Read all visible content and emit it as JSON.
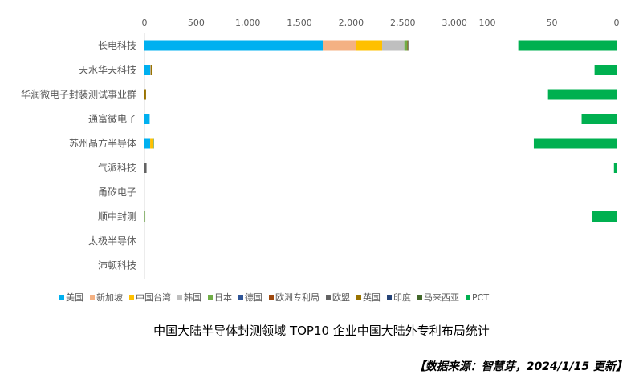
{
  "chart_data": [
    {
      "type": "bar",
      "orientation": "horizontal",
      "stacked": true,
      "categories": [
        "长电科技",
        "天水华天科技",
        "华润微电子封装测试事业群",
        "通富微电子",
        "苏州晶方半导体",
        "气派科技",
        "甬矽电子",
        "顺中封测",
        "太极半导体",
        "沛顿科技"
      ],
      "xlim": [
        0,
        3000
      ],
      "xticks": [
        "0",
        "500",
        "1,000",
        "1,500",
        "2,000",
        "2,500",
        "3,000"
      ],
      "xtick_values": [
        0,
        500,
        1000,
        1500,
        2000,
        2500,
        3000
      ],
      "series": [
        {
          "name": "美国",
          "color": "#00B0F0",
          "values": [
            1725,
            55,
            0,
            50,
            55,
            0,
            0,
            0,
            0,
            0
          ]
        },
        {
          "name": "新加坡",
          "color": "#F4B183",
          "values": [
            320,
            0,
            0,
            0,
            0,
            0,
            0,
            0,
            0,
            0
          ]
        },
        {
          "name": "中国台湾",
          "color": "#FFC000",
          "values": [
            255,
            0,
            0,
            0,
            25,
            0,
            0,
            0,
            0,
            0
          ]
        },
        {
          "name": "韩国",
          "color": "#BFBFBF",
          "values": [
            215,
            5,
            0,
            0,
            8,
            0,
            0,
            3,
            0,
            0
          ]
        },
        {
          "name": "日本",
          "color": "#70AD47",
          "values": [
            30,
            0,
            0,
            0,
            5,
            0,
            0,
            5,
            0,
            0
          ]
        },
        {
          "name": "德国",
          "color": "#2F5597",
          "values": [
            0,
            0,
            0,
            0,
            0,
            0,
            0,
            0,
            0,
            0
          ]
        },
        {
          "name": "欧洲专利局",
          "color": "#9E480E",
          "values": [
            5,
            0,
            0,
            0,
            0,
            0,
            0,
            0,
            0,
            0
          ]
        },
        {
          "name": "欧盟",
          "color": "#636363",
          "values": [
            5,
            0,
            0,
            0,
            0,
            20,
            0,
            0,
            0,
            0
          ]
        },
        {
          "name": "英国",
          "color": "#997300",
          "values": [
            0,
            10,
            15,
            0,
            0,
            0,
            0,
            0,
            0,
            0
          ]
        },
        {
          "name": "印度",
          "color": "#264478",
          "values": [
            0,
            0,
            0,
            0,
            0,
            0,
            0,
            0,
            0,
            0
          ]
        },
        {
          "name": "马来西亚",
          "color": "#43682B",
          "values": [
            5,
            0,
            0,
            0,
            0,
            0,
            0,
            0,
            0,
            0
          ]
        }
      ]
    },
    {
      "type": "bar",
      "orientation": "horizontal",
      "reversed": true,
      "xlim": [
        0,
        100
      ],
      "xticks": [
        "100",
        "50",
        "0"
      ],
      "xtick_values": [
        100,
        50,
        0
      ],
      "series": [
        {
          "name": "PCT",
          "color": "#00B050",
          "values": [
            76,
            17,
            53,
            27,
            64,
            2,
            0,
            19,
            0,
            0
          ]
        }
      ]
    }
  ],
  "legend": [
    "美国",
    "新加坡",
    "中国台湾",
    "韩国",
    "日本",
    "德国",
    "欧洲专利局",
    "欧盟",
    "英国",
    "印度",
    "马来西亚",
    "PCT"
  ],
  "title": "中国大陆半导体封测领域 TOP10 企业中国大陆外专利布局统计",
  "source": "【数据来源：智慧芽，2024/1/15 更新】"
}
